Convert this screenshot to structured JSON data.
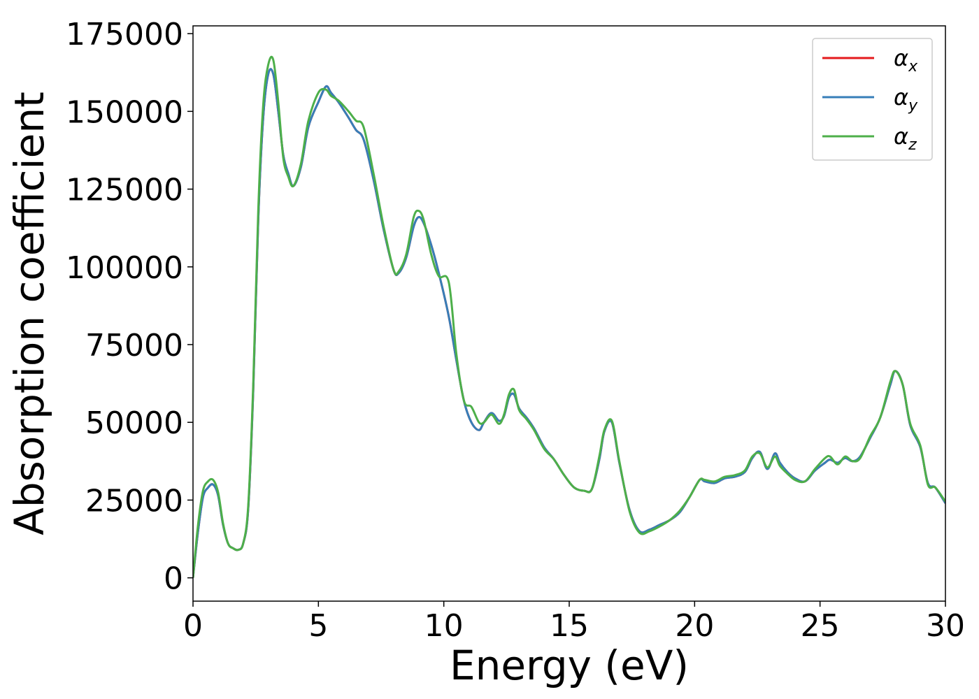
{
  "chart_data": {
    "type": "line",
    "xlabel": "Energy (eV)",
    "ylabel": "Absorption coefficient",
    "xlim": [
      0,
      30
    ],
    "ylim": [
      -7500,
      177500
    ],
    "xticks": [
      0,
      5,
      10,
      15,
      20,
      25,
      30
    ],
    "xtick_labels": [
      "0",
      "5",
      "10",
      "15",
      "20",
      "25",
      "30"
    ],
    "yticks": [
      0,
      25000,
      50000,
      75000,
      100000,
      125000,
      150000,
      175000
    ],
    "ytick_labels": [
      "0",
      "25000",
      "50000",
      "75000",
      "100000",
      "125000",
      "150000",
      "175000"
    ],
    "grid": false,
    "legend_position": "top-right",
    "series": [
      {
        "name": "αx",
        "legend_main": "α",
        "legend_sub": "x",
        "color": "#e41a1c",
        "x": [
          0,
          0.2,
          0.4,
          0.6,
          0.8,
          1.0,
          1.2,
          1.4,
          1.6,
          1.8,
          2.0,
          2.2,
          2.4,
          2.6,
          2.8,
          3.0,
          3.2,
          3.4,
          3.6,
          3.8,
          4.0,
          4.3,
          4.6,
          5.0,
          5.3,
          5.5,
          5.8,
          6.2,
          6.5,
          6.8,
          7.2,
          7.6,
          8.0,
          8.2,
          8.5,
          8.8,
          9.0,
          9.2,
          9.5,
          9.8,
          10.2,
          10.5,
          10.8,
          11.1,
          11.4,
          11.6,
          11.9,
          12.2,
          12.4,
          12.6,
          12.8,
          13.0,
          13.3,
          13.6,
          14.0,
          14.4,
          14.8,
          15.2,
          15.6,
          15.9,
          16.2,
          16.4,
          16.7,
          17.0,
          17.4,
          17.8,
          18.2,
          18.6,
          19.0,
          19.4,
          19.8,
          20.2,
          20.4,
          20.8,
          21.2,
          21.6,
          22.0,
          22.3,
          22.6,
          22.9,
          23.2,
          23.4,
          23.7,
          24.0,
          24.4,
          24.8,
          25.2,
          25.4,
          25.7,
          26.0,
          26.3,
          26.6,
          27.0,
          27.4,
          27.8,
          28.0,
          28.3,
          28.6,
          29.0,
          29.3,
          29.6,
          30.0
        ],
        "y": [
          0,
          15000,
          26000,
          29000,
          30000,
          26500,
          17000,
          11000,
          9500,
          9000,
          11000,
          22000,
          60000,
          115000,
          148000,
          162000,
          162000,
          150000,
          136000,
          130000,
          126000,
          132000,
          145000,
          153000,
          158000,
          156000,
          153000,
          148000,
          144000,
          141000,
          128000,
          112000,
          99000,
          98000,
          103000,
          113000,
          116000,
          114000,
          107000,
          98000,
          84000,
          70000,
          57000,
          50000,
          47500,
          50000,
          53000,
          50500,
          52000,
          58000,
          59000,
          54500,
          51500,
          48000,
          42000,
          38000,
          33000,
          29000,
          28000,
          28500,
          38000,
          47000,
          50000,
          37000,
          22000,
          15000,
          15500,
          17000,
          18500,
          21000,
          26000,
          31500,
          31000,
          30500,
          32000,
          32500,
          34000,
          38500,
          40500,
          35000,
          40000,
          37000,
          34000,
          32000,
          31000,
          34500,
          37000,
          38000,
          37000,
          38500,
          37500,
          39000,
          45000,
          51500,
          62000,
          66500,
          62000,
          49000,
          42000,
          30500,
          29000,
          24000
        ]
      },
      {
        "name": "αy",
        "legend_main": "α",
        "legend_sub": "y",
        "color": "#377eb8",
        "x": [
          0,
          0.2,
          0.4,
          0.6,
          0.8,
          1.0,
          1.2,
          1.4,
          1.6,
          1.8,
          2.0,
          2.2,
          2.4,
          2.6,
          2.8,
          3.0,
          3.2,
          3.4,
          3.6,
          3.8,
          4.0,
          4.3,
          4.6,
          5.0,
          5.3,
          5.5,
          5.8,
          6.2,
          6.5,
          6.8,
          7.2,
          7.6,
          8.0,
          8.2,
          8.5,
          8.8,
          9.0,
          9.2,
          9.5,
          9.8,
          10.2,
          10.5,
          10.8,
          11.1,
          11.4,
          11.6,
          11.9,
          12.2,
          12.4,
          12.6,
          12.8,
          13.0,
          13.3,
          13.6,
          14.0,
          14.4,
          14.8,
          15.2,
          15.6,
          15.9,
          16.2,
          16.4,
          16.7,
          17.0,
          17.4,
          17.8,
          18.2,
          18.6,
          19.0,
          19.4,
          19.8,
          20.2,
          20.4,
          20.8,
          21.2,
          21.6,
          22.0,
          22.3,
          22.6,
          22.9,
          23.2,
          23.4,
          23.7,
          24.0,
          24.4,
          24.8,
          25.2,
          25.4,
          25.7,
          26.0,
          26.3,
          26.6,
          27.0,
          27.4,
          27.8,
          28.0,
          28.3,
          28.6,
          29.0,
          29.3,
          29.6,
          30.0
        ],
        "y": [
          0,
          15000,
          26000,
          29000,
          30000,
          26500,
          17000,
          11000,
          9500,
          9000,
          11000,
          22000,
          60000,
          115000,
          148000,
          162000,
          162000,
          150000,
          136000,
          130000,
          126000,
          132000,
          145000,
          153000,
          158000,
          156000,
          153000,
          148000,
          144000,
          141000,
          128000,
          112000,
          99000,
          98000,
          103000,
          113000,
          116000,
          114000,
          107000,
          98000,
          84000,
          70000,
          57000,
          50000,
          47500,
          50000,
          53000,
          50500,
          52000,
          58000,
          59000,
          54500,
          51500,
          48000,
          42000,
          38000,
          33000,
          29000,
          28000,
          28500,
          38000,
          47000,
          50000,
          37000,
          22000,
          15000,
          15500,
          17000,
          18500,
          21000,
          26000,
          31500,
          31000,
          30500,
          32000,
          32500,
          34000,
          38500,
          40500,
          35000,
          40000,
          37000,
          34000,
          32000,
          31000,
          34500,
          37000,
          38000,
          37000,
          38500,
          37500,
          39000,
          45000,
          51500,
          62000,
          66500,
          62000,
          49000,
          42000,
          30500,
          29000,
          24000
        ]
      },
      {
        "name": "αz",
        "legend_main": "α",
        "legend_sub": "z",
        "color": "#4daf4a",
        "x": [
          0,
          0.2,
          0.4,
          0.6,
          0.8,
          1.0,
          1.2,
          1.4,
          1.6,
          1.8,
          2.0,
          2.2,
          2.4,
          2.6,
          2.8,
          3.0,
          3.2,
          3.4,
          3.6,
          3.8,
          4.0,
          4.3,
          4.6,
          5.0,
          5.3,
          5.5,
          5.8,
          6.2,
          6.5,
          6.8,
          7.2,
          7.6,
          8.0,
          8.2,
          8.5,
          8.8,
          9.0,
          9.2,
          9.5,
          9.8,
          10.2,
          10.5,
          10.8,
          11.1,
          11.4,
          11.6,
          11.9,
          12.2,
          12.4,
          12.6,
          12.8,
          13.0,
          13.3,
          13.6,
          14.0,
          14.4,
          14.8,
          15.2,
          15.6,
          15.9,
          16.2,
          16.4,
          16.7,
          17.0,
          17.4,
          17.8,
          18.2,
          18.6,
          19.0,
          19.4,
          19.8,
          20.2,
          20.4,
          20.8,
          21.2,
          21.6,
          22.0,
          22.3,
          22.6,
          22.9,
          23.2,
          23.4,
          23.7,
          24.0,
          24.4,
          24.8,
          25.2,
          25.4,
          25.7,
          26.0,
          26.3,
          26.6,
          27.0,
          27.4,
          27.8,
          28.0,
          28.3,
          28.6,
          29.0,
          29.3,
          29.6,
          30.0
        ],
        "y": [
          0,
          17000,
          28000,
          31000,
          31500,
          27500,
          17500,
          11000,
          9500,
          9000,
          11000,
          23000,
          62000,
          118000,
          152000,
          165000,
          166500,
          153000,
          135000,
          129000,
          126000,
          133000,
          147000,
          156000,
          157000,
          155000,
          153500,
          150000,
          147000,
          145000,
          130000,
          113000,
          99000,
          98500,
          104000,
          116000,
          118000,
          115000,
          104000,
          97000,
          95000,
          72000,
          57000,
          55000,
          50000,
          50000,
          52500,
          49500,
          52500,
          59000,
          60500,
          54000,
          51000,
          47500,
          41500,
          38000,
          33000,
          29000,
          28000,
          28500,
          39000,
          47500,
          50500,
          37500,
          21500,
          14500,
          15000,
          16500,
          18500,
          21500,
          26000,
          31500,
          31500,
          31000,
          32500,
          33000,
          34500,
          39000,
          40000,
          35500,
          39000,
          36000,
          33500,
          31500,
          31000,
          35000,
          38500,
          39000,
          36500,
          39000,
          37500,
          38500,
          45500,
          51500,
          63000,
          66500,
          62000,
          49500,
          42500,
          30000,
          29000,
          24500
        ]
      }
    ]
  }
}
